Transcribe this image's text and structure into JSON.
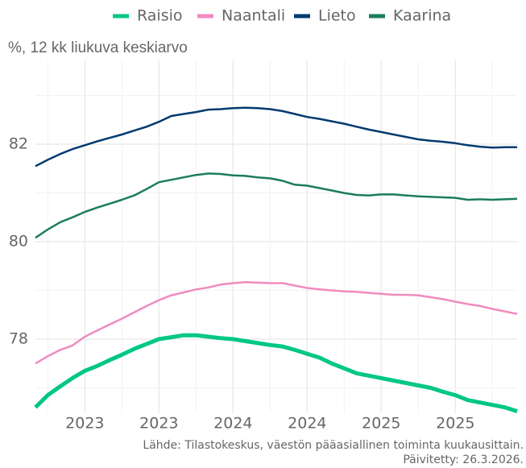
{
  "chart_data": {
    "type": "line",
    "subtitle": "%, 12 kk liukuva keskiarvo",
    "source": "Lähde: Tilastokeskus, väestön pääasiallinen toiminta kuukausittain.",
    "updated": "Päivitetty: 26.3.2026.",
    "categories": [
      null,
      null,
      null,
      null,
      "2023",
      null,
      null,
      null,
      null,
      null,
      "2023",
      null,
      null,
      null,
      null,
      null,
      "2024",
      null,
      null,
      null,
      null,
      null,
      "2024",
      null,
      null,
      null,
      null,
      null,
      "2025",
      null,
      null,
      null,
      null,
      null,
      "2025",
      null,
      null,
      null,
      null,
      null
    ],
    "series": [
      {
        "name": "Raisio",
        "color": "#00c785",
        "values": [
          76.6,
          76.85,
          77.03,
          77.2,
          77.35,
          77.45,
          77.57,
          77.68,
          77.8,
          77.9,
          78.0,
          78.04,
          78.08,
          78.08,
          78.05,
          78.02,
          78.0,
          77.96,
          77.92,
          77.88,
          77.85,
          77.78,
          77.7,
          77.62,
          77.5,
          77.4,
          77.3,
          77.25,
          77.2,
          77.15,
          77.1,
          77.05,
          77.0,
          76.92,
          76.85,
          76.75,
          76.7,
          76.65,
          76.6,
          76.52
        ]
      },
      {
        "name": "Naantali",
        "color": "#f08bbf",
        "values": [
          77.5,
          77.65,
          77.78,
          77.87,
          78.05,
          78.18,
          78.3,
          78.42,
          78.55,
          78.68,
          78.8,
          78.9,
          78.96,
          79.02,
          79.06,
          79.12,
          79.15,
          79.17,
          79.16,
          79.15,
          79.15,
          79.1,
          79.05,
          79.02,
          79.0,
          78.98,
          78.97,
          78.95,
          78.93,
          78.91,
          78.91,
          78.9,
          78.86,
          78.82,
          78.77,
          78.72,
          78.68,
          78.62,
          78.57,
          78.52
        ]
      },
      {
        "name": "Lieto",
        "color": "#003a70",
        "values": [
          81.55,
          81.68,
          81.8,
          81.9,
          81.98,
          82.06,
          82.13,
          82.2,
          82.28,
          82.36,
          82.46,
          82.58,
          82.62,
          82.66,
          82.71,
          82.72,
          82.74,
          82.75,
          82.74,
          82.72,
          82.68,
          82.62,
          82.56,
          82.52,
          82.47,
          82.42,
          82.36,
          82.3,
          82.25,
          82.2,
          82.15,
          82.1,
          82.07,
          82.05,
          82.02,
          81.98,
          81.95,
          81.93,
          81.94,
          81.94
        ]
      },
      {
        "name": "Kaarina",
        "color": "#1b7d5a",
        "values": [
          80.08,
          80.25,
          80.4,
          80.5,
          80.61,
          80.7,
          80.78,
          80.86,
          80.95,
          81.08,
          81.22,
          81.27,
          81.32,
          81.37,
          81.4,
          81.39,
          81.36,
          81.35,
          81.32,
          81.3,
          81.25,
          81.17,
          81.15,
          81.1,
          81.05,
          81.0,
          80.96,
          80.95,
          80.97,
          80.97,
          80.95,
          80.93,
          80.92,
          80.91,
          80.9,
          80.86,
          80.87,
          80.86,
          80.87,
          80.88
        ]
      }
    ],
    "ylim": [
      76.48,
      83.72
    ],
    "yticks": [
      78,
      80,
      82
    ],
    "grid": true
  }
}
